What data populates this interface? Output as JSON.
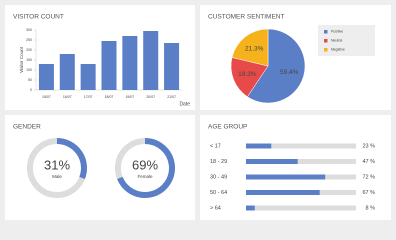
{
  "chart_data": [
    {
      "type": "bar",
      "title": "VISITOR COUNT",
      "x_label": "Date",
      "y_label": "Visitor Count",
      "categories": [
        "15/07",
        "16/07",
        "17/07",
        "18/07",
        "19/07",
        "20/07",
        "21/07"
      ],
      "values": [
        130,
        180,
        130,
        245,
        270,
        295,
        235
      ],
      "color": "#5b7fc7",
      "ylim": [
        0,
        300
      ],
      "yticks": [
        0,
        50,
        100,
        150,
        200,
        250,
        300
      ]
    },
    {
      "type": "pie",
      "title": "CUSTOMER SENTIMENT",
      "categories": [
        "Positive",
        "Neutral",
        "Negative"
      ],
      "values": [
        59.4,
        19.3,
        21.3
      ],
      "value_labels": [
        "59.4%",
        "19.3%",
        "21.3%"
      ],
      "colors": [
        "#5b7fc7",
        "#e84a4a",
        "#f5b21b"
      ]
    },
    {
      "type": "donut",
      "title": "GENDER",
      "categories": [
        "Male",
        "Female"
      ],
      "values": [
        31,
        69
      ],
      "value_labels": [
        "31%",
        "69%"
      ],
      "color": "#5b7fc7"
    },
    {
      "type": "hbar",
      "title": "AGE GROUP",
      "categories": [
        "< 17",
        "18 - 29",
        "30 - 49",
        "50 - 64",
        "> 64"
      ],
      "values": [
        23,
        47,
        72,
        67,
        8
      ],
      "value_labels": [
        "23 %",
        "47 %",
        "72 %",
        "67 %",
        "8 %"
      ],
      "color": "#5b7fc7",
      "xlim": [
        0,
        100
      ]
    }
  ]
}
